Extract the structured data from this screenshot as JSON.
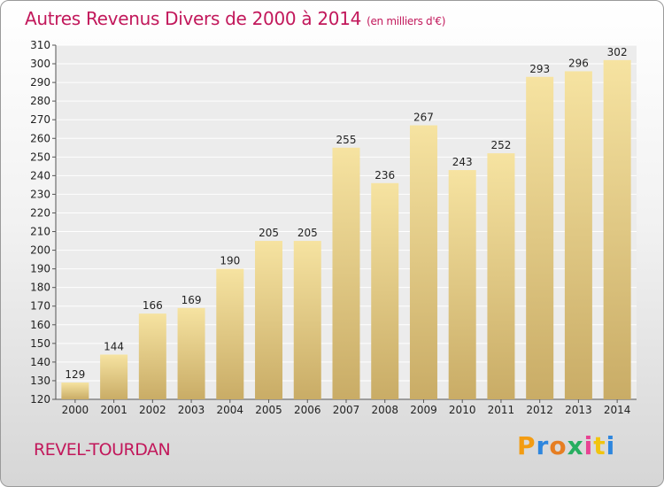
{
  "title": "Autres Revenus Divers de 2000 à 2014",
  "unit": "(en milliers d'€)",
  "location": "REVEL-TOURDAN",
  "logo": {
    "letters": [
      "P",
      "r",
      "o",
      "x",
      "i",
      "t",
      "i"
    ],
    "colors": [
      "#f39c12",
      "#2e86de",
      "#e67e22",
      "#27ae60",
      "#e84393",
      "#f1c40f",
      "#2e86de"
    ]
  },
  "colors": {
    "accent": "#c2185b",
    "bar_light": "#f6e3a1",
    "bar_dark": "#c9ac66"
  },
  "chart_data": {
    "type": "bar",
    "categories": [
      "2000",
      "2001",
      "2002",
      "2003",
      "2004",
      "2005",
      "2006",
      "2007",
      "2008",
      "2009",
      "2010",
      "2011",
      "2012",
      "2013",
      "2014"
    ],
    "values": [
      129,
      144,
      166,
      169,
      190,
      205,
      205,
      255,
      236,
      267,
      243,
      252,
      293,
      296,
      302
    ],
    "ylim": [
      120,
      310
    ],
    "yticks": [
      120,
      130,
      140,
      150,
      160,
      170,
      180,
      190,
      200,
      210,
      220,
      230,
      240,
      250,
      260,
      270,
      280,
      290,
      300,
      310
    ],
    "grid": true
  }
}
